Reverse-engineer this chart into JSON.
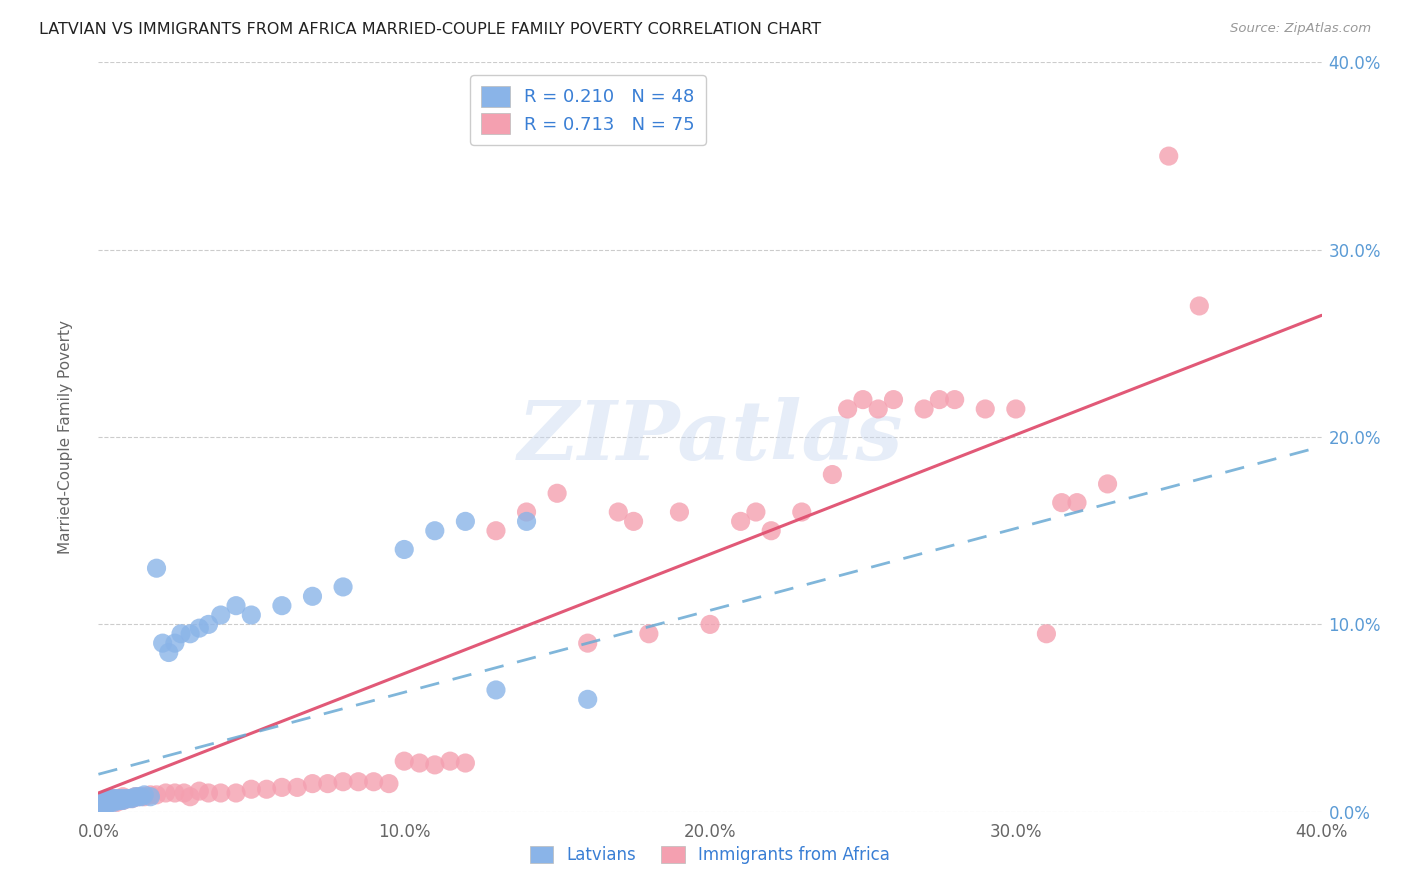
{
  "title": "LATVIAN VS IMMIGRANTS FROM AFRICA MARRIED-COUPLE FAMILY POVERTY CORRELATION CHART",
  "source": "Source: ZipAtlas.com",
  "ylabel": "Married-Couple Family Poverty",
  "xlim": [
    0.0,
    0.4
  ],
  "ylim": [
    0.0,
    0.4
  ],
  "xtick_labels": [
    "0.0%",
    "10.0%",
    "20.0%",
    "30.0%",
    "40.0%"
  ],
  "xtick_vals": [
    0.0,
    0.1,
    0.2,
    0.3,
    0.4
  ],
  "ytick_labels_right": [
    "0.0%",
    "10.0%",
    "20.0%",
    "30.0%",
    "40.0%"
  ],
  "ytick_vals": [
    0.0,
    0.1,
    0.2,
    0.3,
    0.4
  ],
  "latvian_color": "#8ab4e8",
  "africa_color": "#f4a0b0",
  "latvian_R": 0.21,
  "latvian_N": 48,
  "africa_R": 0.713,
  "africa_N": 75,
  "legend_label_1": "Latvians",
  "legend_label_2": "Immigrants from Africa",
  "watermark": "ZIPatlas",
  "line_lat_color": "#6aaad4",
  "line_afr_color": "#e05070",
  "lat_line_x": [
    0.0,
    0.4
  ],
  "lat_line_y": [
    0.02,
    0.195
  ],
  "afr_line_x": [
    0.0,
    0.4
  ],
  "afr_line_y": [
    0.01,
    0.265
  ],
  "latvian_x": [
    0.001,
    0.001,
    0.002,
    0.002,
    0.002,
    0.003,
    0.003,
    0.003,
    0.004,
    0.004,
    0.004,
    0.005,
    0.005,
    0.005,
    0.006,
    0.006,
    0.007,
    0.007,
    0.008,
    0.008,
    0.009,
    0.01,
    0.011,
    0.012,
    0.013,
    0.014,
    0.015,
    0.017,
    0.019,
    0.021,
    0.023,
    0.025,
    0.027,
    0.03,
    0.033,
    0.036,
    0.04,
    0.045,
    0.05,
    0.06,
    0.07,
    0.08,
    0.1,
    0.11,
    0.12,
    0.13,
    0.14,
    0.16
  ],
  "latvian_y": [
    0.003,
    0.004,
    0.004,
    0.005,
    0.006,
    0.004,
    0.005,
    0.007,
    0.005,
    0.006,
    0.007,
    0.005,
    0.006,
    0.007,
    0.006,
    0.007,
    0.006,
    0.007,
    0.006,
    0.007,
    0.007,
    0.007,
    0.007,
    0.008,
    0.008,
    0.008,
    0.009,
    0.008,
    0.13,
    0.09,
    0.085,
    0.09,
    0.095,
    0.095,
    0.098,
    0.1,
    0.105,
    0.11,
    0.105,
    0.11,
    0.115,
    0.12,
    0.14,
    0.15,
    0.155,
    0.065,
    0.155,
    0.06
  ],
  "africa_x": [
    0.001,
    0.002,
    0.002,
    0.003,
    0.003,
    0.004,
    0.004,
    0.005,
    0.005,
    0.006,
    0.006,
    0.007,
    0.007,
    0.008,
    0.008,
    0.009,
    0.01,
    0.011,
    0.012,
    0.013,
    0.015,
    0.017,
    0.019,
    0.022,
    0.025,
    0.028,
    0.03,
    0.033,
    0.036,
    0.04,
    0.045,
    0.05,
    0.055,
    0.06,
    0.065,
    0.07,
    0.075,
    0.08,
    0.085,
    0.09,
    0.095,
    0.1,
    0.105,
    0.11,
    0.115,
    0.12,
    0.13,
    0.14,
    0.15,
    0.16,
    0.17,
    0.175,
    0.18,
    0.19,
    0.2,
    0.21,
    0.215,
    0.22,
    0.23,
    0.24,
    0.245,
    0.25,
    0.255,
    0.26,
    0.27,
    0.275,
    0.28,
    0.29,
    0.3,
    0.31,
    0.315,
    0.32,
    0.33,
    0.35,
    0.36
  ],
  "africa_y": [
    0.004,
    0.004,
    0.006,
    0.005,
    0.007,
    0.005,
    0.007,
    0.006,
    0.007,
    0.005,
    0.007,
    0.006,
    0.007,
    0.006,
    0.008,
    0.007,
    0.007,
    0.007,
    0.008,
    0.008,
    0.008,
    0.009,
    0.009,
    0.01,
    0.01,
    0.01,
    0.008,
    0.011,
    0.01,
    0.01,
    0.01,
    0.012,
    0.012,
    0.013,
    0.013,
    0.015,
    0.015,
    0.016,
    0.016,
    0.016,
    0.015,
    0.027,
    0.026,
    0.025,
    0.027,
    0.026,
    0.15,
    0.16,
    0.17,
    0.09,
    0.16,
    0.155,
    0.095,
    0.16,
    0.1,
    0.155,
    0.16,
    0.15,
    0.16,
    0.18,
    0.215,
    0.22,
    0.215,
    0.22,
    0.215,
    0.22,
    0.22,
    0.215,
    0.215,
    0.095,
    0.165,
    0.165,
    0.175,
    0.35,
    0.27
  ]
}
